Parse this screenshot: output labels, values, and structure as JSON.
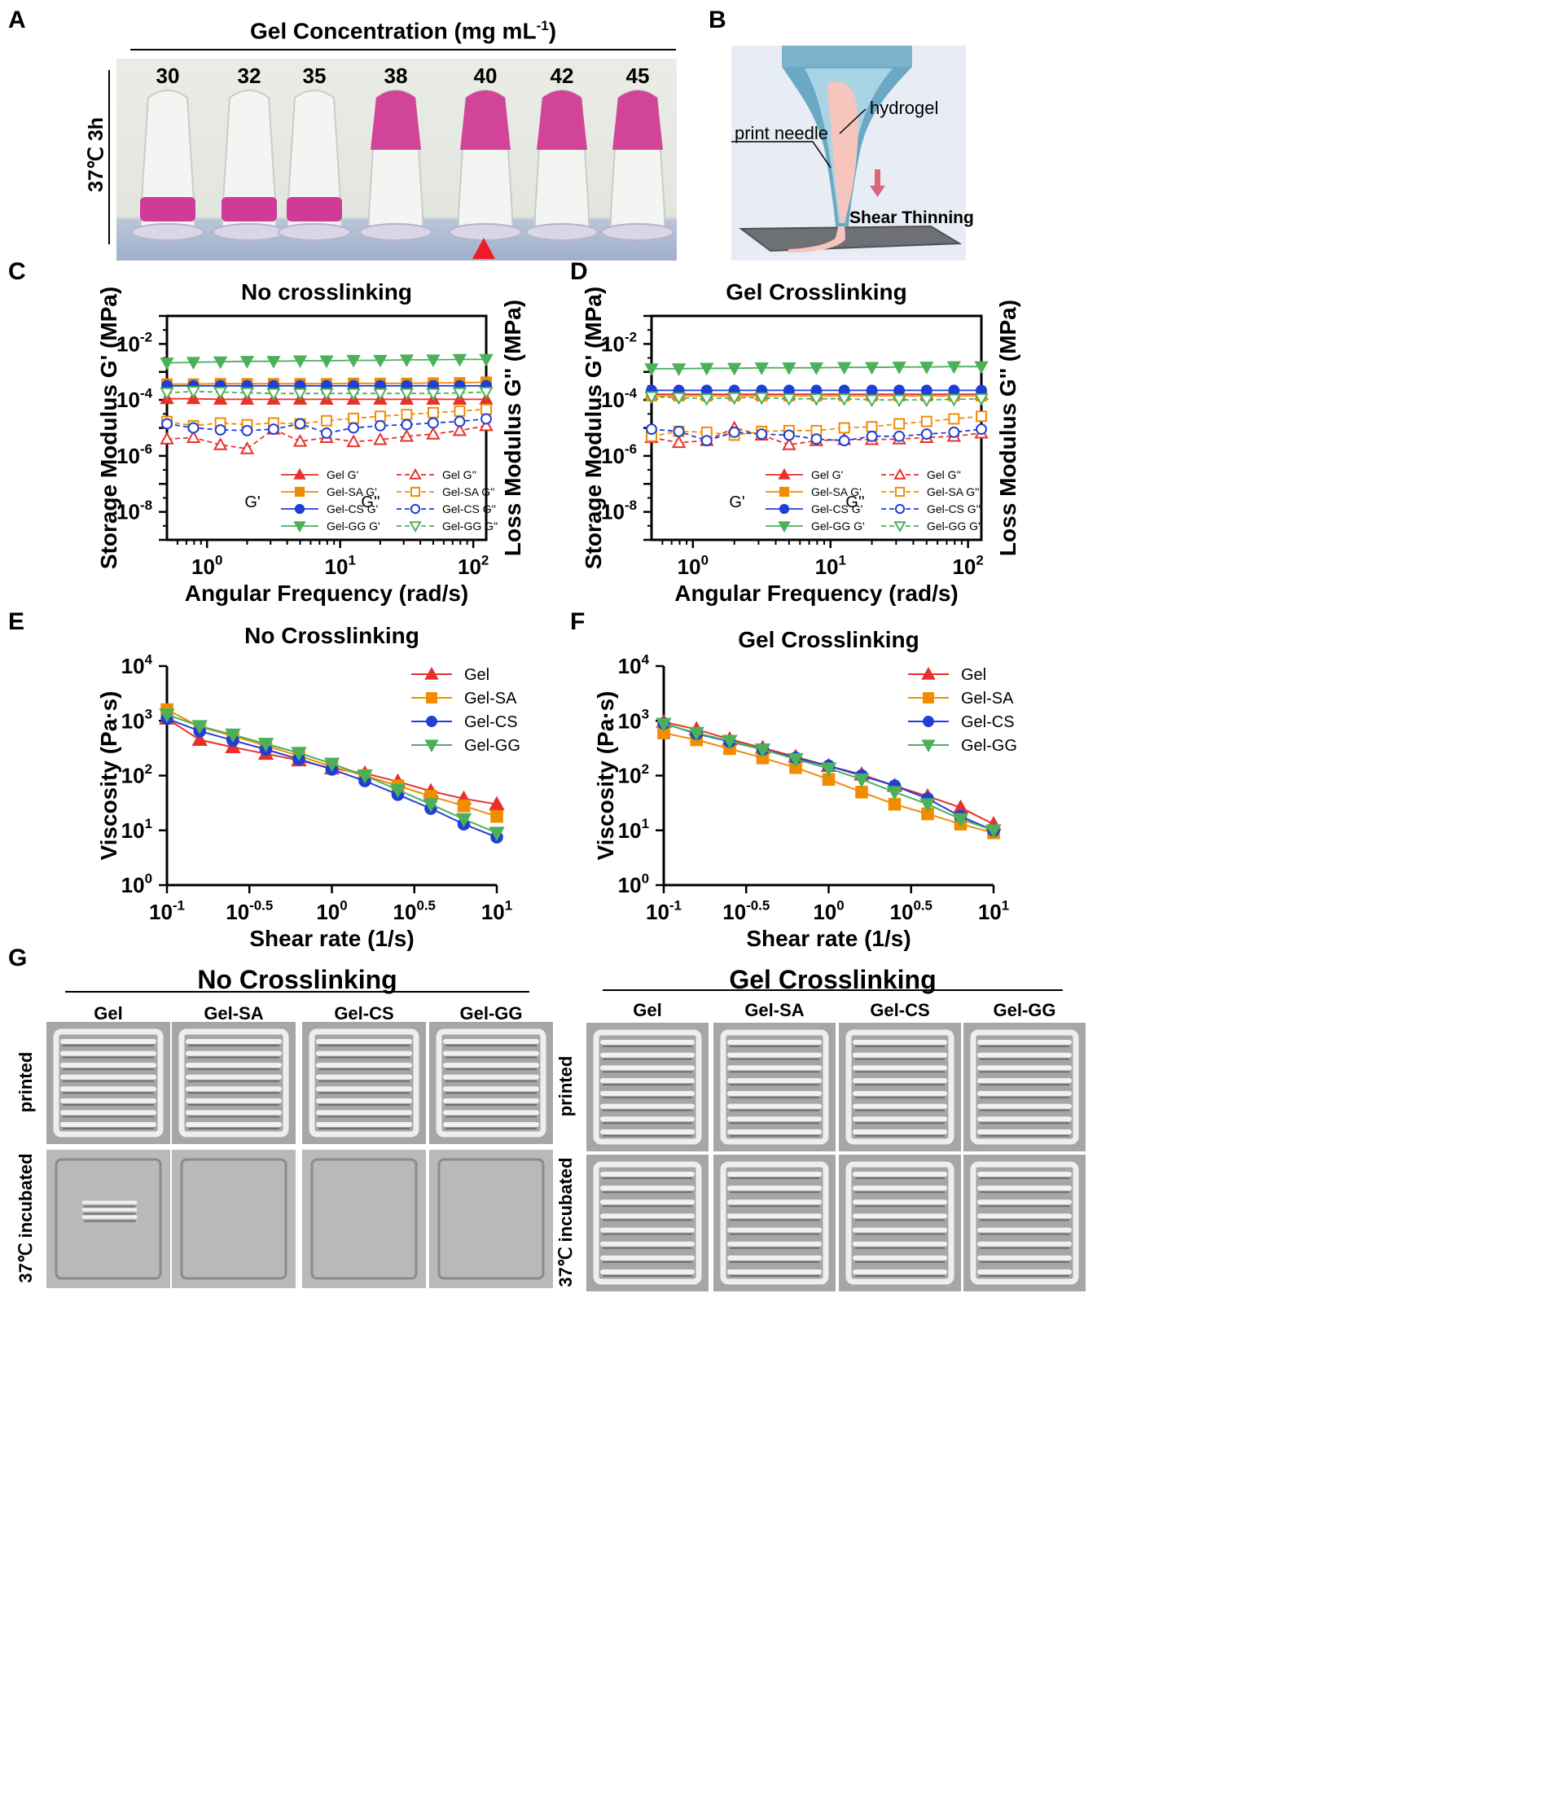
{
  "panelA": {
    "label": "A",
    "title": "Gel Concentration (mg mL",
    "title_sup": "-1",
    "title_end": ")",
    "side_label": "37℃ 3h",
    "concentrations": [
      "30",
      "32",
      "35",
      "38",
      "40",
      "42",
      "45"
    ],
    "marker_color": "#ee1c25"
  },
  "panelB": {
    "label": "B",
    "hydrogel": "hydrogel",
    "print_needle": "print needle",
    "shear": "Shear Thinning"
  },
  "panelG": {
    "label": "G",
    "left_title": "No Crosslinking",
    "right_title": "Gel Crosslinking",
    "columns": [
      "Gel",
      "Gel-SA",
      "Gel-CS",
      "Gel-GG"
    ],
    "row_printed": "printed",
    "row_incubated": "37℃ incubated"
  },
  "chart_data": [
    {
      "id": "C",
      "label": "C",
      "type": "line",
      "scale": "log-log",
      "title": "No crosslinking",
      "xlabel": "Angular Frequency (rad/s)",
      "ylabel": "Storage Modulus G' (MPa)",
      "ylabel_right": "Loss Modulus G'' (MPa)",
      "xlim": [
        0.5,
        125
      ],
      "ylim": [
        1e-09,
        0.1
      ],
      "xticks": [
        "10^0",
        "10^1",
        "10^2"
      ],
      "yticks": [
        "10^-8",
        "10^-6",
        "10^-4",
        "10^-2"
      ],
      "legend_group_gp": "G'",
      "legend_group_gpp": "G''",
      "x": [
        0.5,
        0.79,
        1.26,
        2.0,
        3.16,
        5.0,
        7.9,
        12.6,
        20,
        31.6,
        50,
        79,
        125
      ],
      "series": [
        {
          "name": "Gel G'",
          "color": "#e8312a",
          "marker": "triangle",
          "filled": true,
          "dashed": false,
          "values": [
            0.00011,
            0.00011,
            0.000105,
            0.000105,
            0.000105,
            0.000105,
            0.000105,
            0.000105,
            0.000105,
            0.000105,
            0.000105,
            0.000105,
            0.000105
          ]
        },
        {
          "name": "Gel-SA G'",
          "color": "#f08c00",
          "marker": "square",
          "filled": true,
          "dashed": false,
          "values": [
            0.00037,
            0.00037,
            0.00038,
            0.00038,
            0.00038,
            0.00038,
            0.00038,
            0.00039,
            0.00039,
            0.00039,
            0.0004,
            0.00041,
            0.00043
          ]
        },
        {
          "name": "Gel-CS G'",
          "color": "#1f3fd6",
          "marker": "circle",
          "filled": true,
          "dashed": false,
          "values": [
            0.00032,
            0.00032,
            0.00032,
            0.00032,
            0.00032,
            0.00032,
            0.00032,
            0.00032,
            0.00032,
            0.00032,
            0.00032,
            0.00032,
            0.00032
          ]
        },
        {
          "name": "Gel-GG G'",
          "color": "#4cb05a",
          "marker": "down-triangle",
          "filled": true,
          "dashed": false,
          "values": [
            0.0021,
            0.0022,
            0.0023,
            0.0024,
            0.0024,
            0.0025,
            0.0025,
            0.0026,
            0.0026,
            0.0027,
            0.0027,
            0.0028,
            0.0028
          ]
        },
        {
          "name": "Gel G''",
          "color": "#e8312a",
          "marker": "triangle",
          "filled": false,
          "dashed": true,
          "values": [
            4e-06,
            4.5e-06,
            2.5e-06,
            1.8e-06,
            9e-06,
            3.3e-06,
            4.5e-06,
            3.2e-06,
            3.8e-06,
            5e-06,
            6e-06,
            8e-06,
            1.2e-05
          ]
        },
        {
          "name": "Gel-SA G''",
          "color": "#f08c00",
          "marker": "square",
          "filled": false,
          "dashed": true,
          "values": [
            1.7e-05,
            1.2e-05,
            1.5e-05,
            1.3e-05,
            1.5e-05,
            1.4e-05,
            1.8e-05,
            2.2e-05,
            2.6e-05,
            3e-05,
            3.5e-05,
            4e-05,
            4.6e-05
          ]
        },
        {
          "name": "Gel-CS G''",
          "color": "#1f3fd6",
          "marker": "circle",
          "filled": false,
          "dashed": true,
          "values": [
            1.4e-05,
            1e-05,
            8.5e-06,
            8e-06,
            9e-06,
            1.4e-05,
            6.5e-06,
            1e-05,
            1.2e-05,
            1.3e-05,
            1.5e-05,
            1.7e-05,
            2.1e-05
          ]
        },
        {
          "name": "Gel-GG G''",
          "color": "#4cb05a",
          "marker": "down-triangle",
          "filled": false,
          "dashed": true,
          "values": [
            0.00018,
            0.0002,
            0.00019,
            0.00018,
            0.00017,
            0.00017,
            0.00017,
            0.00017,
            0.00017,
            0.00017,
            0.00017,
            0.00018,
            0.00019
          ]
        }
      ]
    },
    {
      "id": "D",
      "label": "D",
      "type": "line",
      "scale": "log-log",
      "title": "Gel Crosslinking",
      "xlabel": "Angular Frequency (rad/s)",
      "ylabel": "Storage Modulus G' (MPa)",
      "ylabel_right": "Loss Modulus G'' (MPa)",
      "xlim": [
        0.5,
        125
      ],
      "ylim": [
        1e-09,
        0.1
      ],
      "xticks": [
        "10^0",
        "10^1",
        "10^2"
      ],
      "yticks": [
        "10^-8",
        "10^-6",
        "10^-4",
        "10^-2"
      ],
      "legend_group_gp": "G'",
      "legend_group_gpp": "G''",
      "x": [
        0.5,
        0.79,
        1.26,
        2.0,
        3.16,
        5.0,
        7.9,
        12.6,
        20,
        31.6,
        50,
        79,
        125
      ],
      "series": [
        {
          "name": "Gel G'",
          "color": "#e8312a",
          "marker": "triangle",
          "filled": true,
          "dashed": false,
          "values": [
            0.00016,
            0.00016,
            0.00016,
            0.00016,
            0.00016,
            0.00016,
            0.00016,
            0.00016,
            0.00016,
            0.00016,
            0.00016,
            0.00016,
            0.00016
          ]
        },
        {
          "name": "Gel-SA G'",
          "color": "#f08c00",
          "marker": "square",
          "filled": true,
          "dashed": false,
          "values": [
            0.00014,
            0.00014,
            0.00014,
            0.00014,
            0.00014,
            0.00014,
            0.00014,
            0.00014,
            0.00014,
            0.00014,
            0.00014,
            0.00014,
            0.00014
          ]
        },
        {
          "name": "Gel-CS G'",
          "color": "#1f3fd6",
          "marker": "circle",
          "filled": true,
          "dashed": false,
          "values": [
            0.00022,
            0.00022,
            0.00022,
            0.00022,
            0.00022,
            0.00022,
            0.00022,
            0.00022,
            0.00022,
            0.00022,
            0.00022,
            0.00022,
            0.00022
          ]
        },
        {
          "name": "Gel-GG G'",
          "color": "#4cb05a",
          "marker": "down-triangle",
          "filled": true,
          "dashed": false,
          "values": [
            0.0013,
            0.0013,
            0.00135,
            0.00135,
            0.0014,
            0.0014,
            0.0014,
            0.00145,
            0.00145,
            0.0015,
            0.0015,
            0.00155,
            0.00155
          ]
        },
        {
          "name": "Gel G''",
          "color": "#e8312a",
          "marker": "triangle",
          "filled": false,
          "dashed": true,
          "values": [
            4.5e-06,
            3e-06,
            3.5e-06,
            1e-05,
            5.5e-06,
            2.5e-06,
            3.5e-06,
            3.8e-06,
            3.8e-06,
            4e-06,
            4.5e-06,
            5e-06,
            6.5e-06
          ]
        },
        {
          "name": "Gel-SA G''",
          "color": "#f08c00",
          "marker": "square",
          "filled": false,
          "dashed": true,
          "values": [
            5e-06,
            7.5e-06,
            7e-06,
            5.5e-06,
            7.5e-06,
            8e-06,
            8e-06,
            1e-05,
            1.1e-05,
            1.4e-05,
            1.7e-05,
            2.1e-05,
            2.6e-05
          ]
        },
        {
          "name": "Gel-CS G''",
          "color": "#1f3fd6",
          "marker": "circle",
          "filled": false,
          "dashed": true,
          "values": [
            9e-06,
            7.5e-06,
            3.5e-06,
            7e-06,
            6e-06,
            5.5e-06,
            4e-06,
            3.5e-06,
            5e-06,
            5e-06,
            6e-06,
            7e-06,
            9e-06
          ]
        },
        {
          "name": "Gel-GG G''",
          "color": "#4cb05a",
          "marker": "down-triangle",
          "filled": false,
          "dashed": true,
          "values": [
            0.00013,
            0.00012,
            0.00011,
            0.00012,
            0.00012,
            0.00011,
            0.00011,
            0.00011,
            0.0001,
            0.0001,
            0.0001,
            0.000105,
            0.00011
          ]
        }
      ]
    },
    {
      "id": "E",
      "label": "E",
      "type": "line",
      "scale": "log-log",
      "title": "No Crosslinking",
      "xlabel": "Shear rate (1/s)",
      "ylabel": "Viscosity (Pa·s)",
      "xlim": [
        0.1,
        10
      ],
      "ylim": [
        1,
        10000
      ],
      "xticks": [
        "10^-1",
        "10^-0.5",
        "10^0",
        "10^0.5",
        "10^1"
      ],
      "yticks": [
        "10^0",
        "10^1",
        "10^2",
        "10^3",
        "10^4"
      ],
      "x": [
        0.1,
        0.158,
        0.251,
        0.398,
        0.631,
        1.0,
        1.585,
        2.512,
        3.981,
        6.31,
        10
      ],
      "series": [
        {
          "name": "Gel",
          "color": "#e8312a",
          "marker": "triangle",
          "values": [
            1100,
            450,
            330,
            250,
            190,
            135,
            110,
            78,
            52,
            38,
            30
          ]
        },
        {
          "name": "Gel-SA",
          "color": "#f08c00",
          "marker": "square",
          "values": [
            1600,
            780,
            530,
            350,
            230,
            145,
            100,
            65,
            42,
            28,
            18
          ]
        },
        {
          "name": "Gel-CS",
          "color": "#1f3fd6",
          "marker": "circle",
          "values": [
            1100,
            650,
            440,
            300,
            200,
            130,
            80,
            45,
            25,
            13,
            7.5
          ]
        },
        {
          "name": "Gel-GG",
          "color": "#4cb05a",
          "marker": "down-triangle",
          "values": [
            1300,
            800,
            560,
            380,
            260,
            165,
            100,
            55,
            30,
            16,
            9
          ]
        }
      ]
    },
    {
      "id": "F",
      "label": "F",
      "type": "line",
      "scale": "log-log",
      "title": "Gel Crosslinking",
      "xlabel": "Shear rate (1/s)",
      "ylabel": "Viscosity (Pa·s)",
      "xlim": [
        0.1,
        10
      ],
      "ylim": [
        1,
        10000
      ],
      "xticks": [
        "10^-1",
        "10^-0.5",
        "10^0",
        "10^0.5",
        "10^1"
      ],
      "yticks": [
        "10^0",
        "10^1",
        "10^2",
        "10^3",
        "10^4"
      ],
      "x": [
        0.1,
        0.158,
        0.251,
        0.398,
        0.631,
        1.0,
        1.585,
        2.512,
        3.981,
        6.31,
        10
      ],
      "series": [
        {
          "name": "Gel",
          "color": "#e8312a",
          "marker": "triangle",
          "values": [
            950,
            700,
            460,
            320,
            220,
            150,
            105,
            65,
            42,
            26,
            13
          ]
        },
        {
          "name": "Gel-SA",
          "color": "#f08c00",
          "marker": "square",
          "values": [
            600,
            450,
            310,
            210,
            140,
            85,
            50,
            30,
            20,
            13,
            9
          ]
        },
        {
          "name": "Gel-CS",
          "color": "#1f3fd6",
          "marker": "circle",
          "values": [
            900,
            580,
            420,
            300,
            210,
            150,
            100,
            65,
            38,
            18,
            10
          ]
        },
        {
          "name": "Gel-GG",
          "color": "#4cb05a",
          "marker": "down-triangle",
          "values": [
            880,
            600,
            430,
            300,
            200,
            135,
            85,
            50,
            30,
            16,
            10
          ]
        }
      ]
    }
  ]
}
